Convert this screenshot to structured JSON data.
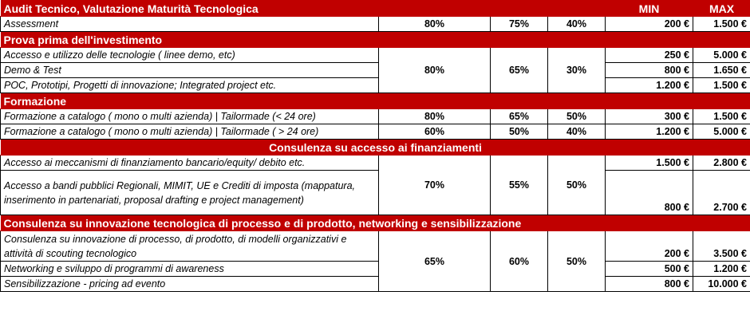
{
  "header": {
    "section_title": "Audit Tecnico, Valutazione Maturità Tecnologica",
    "min_label": "MIN",
    "max_label": "MAX"
  },
  "sections": [
    {
      "title": "Audit Tecnico, Valutazione Maturità Tecnologica",
      "pct": [
        "80%",
        "75%",
        "40%"
      ],
      "rows": [
        {
          "label": "Assessment",
          "min": "200 €",
          "max": "1.500 €"
        }
      ]
    },
    {
      "title": "Prova prima dell'investimento",
      "pct": [
        "80%",
        "65%",
        "30%"
      ],
      "rows": [
        {
          "label": "Accesso e utilizzo delle tecnologie ( linee demo, etc)",
          "min": "250 €",
          "max": "5.000 €"
        },
        {
          "label": "Demo & Test",
          "min": "800 €",
          "max": "1.650 €"
        },
        {
          "label": "POC, Prototipi, Progetti di innovazione; Integrated project etc.",
          "min": "1.200 €",
          "max": "1.500 €"
        }
      ]
    },
    {
      "title": "Formazione",
      "rows": [
        {
          "label": "Formazione a catalogo ( mono o multi azienda) | Tailormade (<  24 ore)",
          "pct": [
            "80%",
            "65%",
            "50%"
          ],
          "min": "300 €",
          "max": "1.500 €"
        },
        {
          "label": "Formazione a catalogo ( mono o multi azienda) | Tailormade ( > 24 ore)",
          "pct": [
            "60%",
            "50%",
            "40%"
          ],
          "min": "1.200 €",
          "max": "5.000 €"
        }
      ]
    },
    {
      "title": "Consulenza su accesso ai finanziamenti",
      "pct": [
        "70%",
        "55%",
        "50%"
      ],
      "rows": [
        {
          "label": "Accesso ai meccanismi di finanziamento bancario/equity/ debito etc.",
          "min": "1.500 €",
          "max": "2.800 €"
        },
        {
          "label": "Accesso a bandi pubblici Regionali, MIMIT, UE e Crediti di imposta (mappatura, inserimento in partenariati, proposal drafting e project management)",
          "min": "800 €",
          "max": "2.700 €"
        }
      ]
    },
    {
      "title": "Consulenza su innovazione tecnologica di processo e di prodotto, networking e sensibilizzazione",
      "pct": [
        "65%",
        "60%",
        "50%"
      ],
      "rows": [
        {
          "label": "Consulenza su innovazione di processo, di prodotto, di modelli organizzativi e attività di scouting tecnologico",
          "min": "200 €",
          "max": "3.500 €"
        },
        {
          "label": "Networking e sviluppo di programmi di awareness",
          "min": "500 €",
          "max": "1.200 €"
        },
        {
          "label": "Sensibilizzazione - pricing ad evento",
          "min": "800 €",
          "max": "10.000 €"
        }
      ]
    }
  ]
}
